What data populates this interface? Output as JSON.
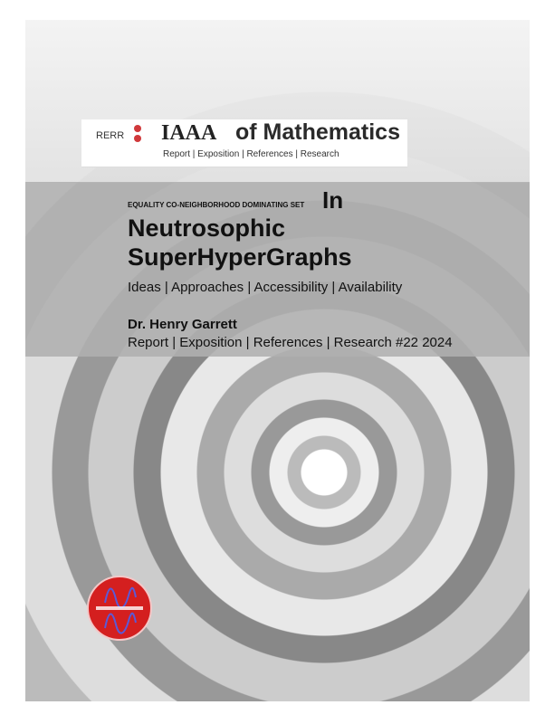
{
  "masthead": {
    "publisher": "RERR",
    "brand": "IAAA",
    "journal": "of Mathematics",
    "subtitle": "Report | Exposition | References | Research"
  },
  "cover": {
    "kicker": "EQUALITY CO-NEIGHBORHOOD DOMINATING SET",
    "in_word": "In",
    "title_line1": "Neutrosophic",
    "title_line2": "SuperHyperGraphs",
    "tagline": "Ideas | Approaches | Accessibility | Availability",
    "author": "Dr. Henry Garrett",
    "series": "Report | Exposition | References | Research #22 2024"
  },
  "colors": {
    "accent": "#d0393b",
    "band": "#afafaf"
  },
  "icons": {
    "logo": "red-circular-seal-with-wave-curves"
  }
}
